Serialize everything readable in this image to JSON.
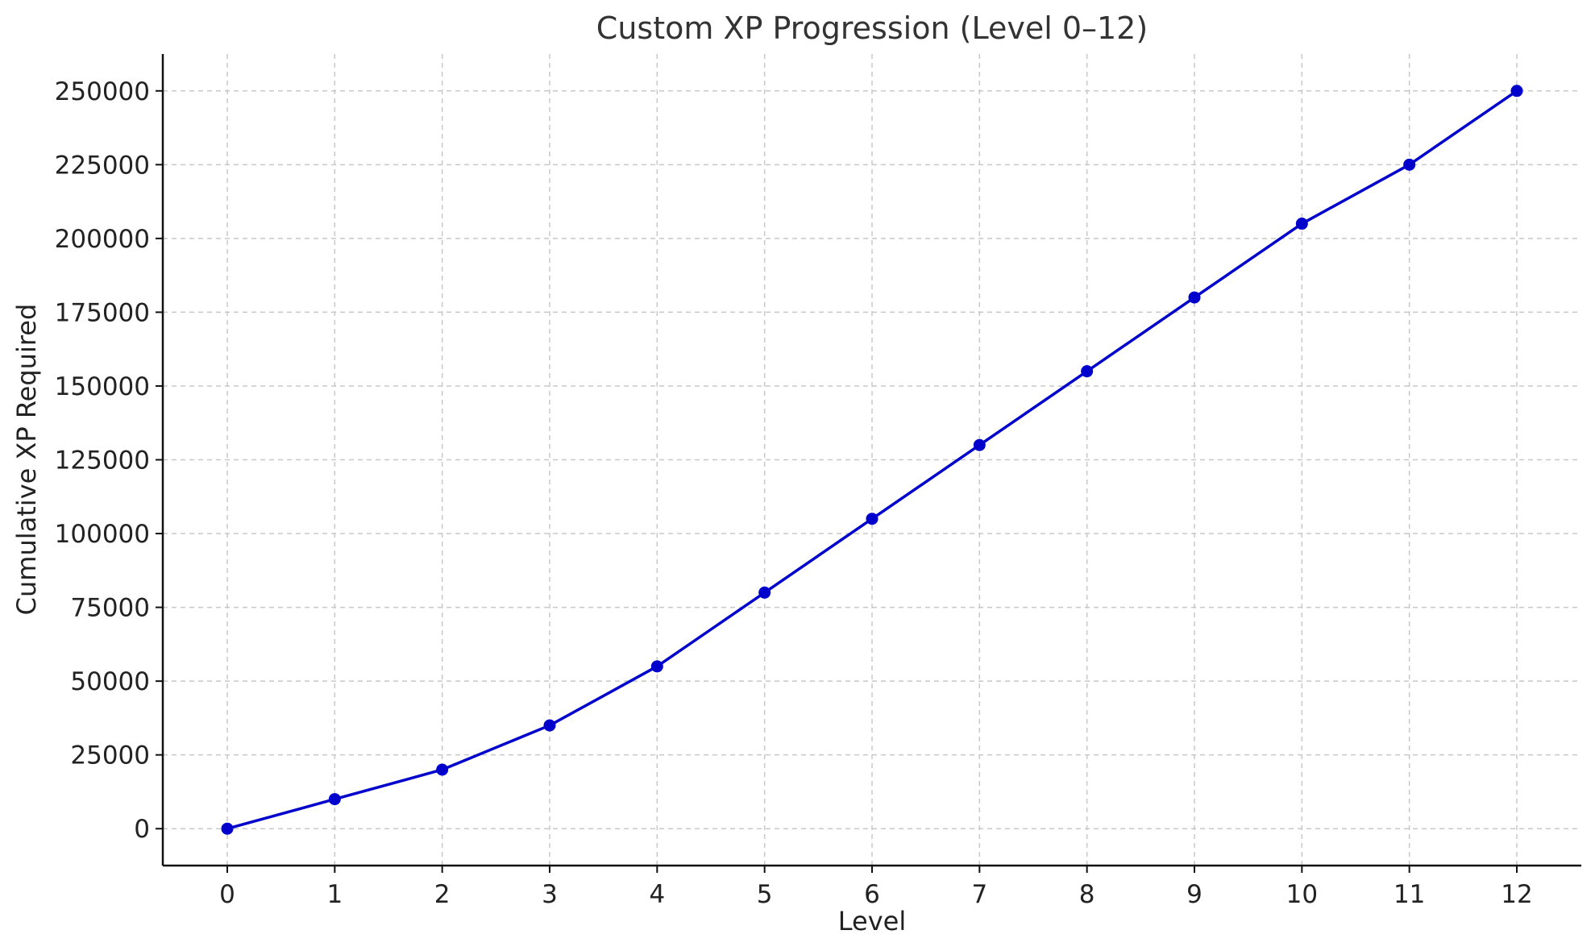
{
  "chart_data": {
    "type": "line",
    "title": "Custom XP Progression (Level 0–12)",
    "xlabel": "Level",
    "ylabel": "Cumulative XP Required",
    "x": [
      0,
      1,
      2,
      3,
      4,
      5,
      6,
      7,
      8,
      9,
      10,
      11,
      12
    ],
    "series": [
      {
        "values": [
          0,
          10000,
          20000,
          35000,
          55000,
          80000,
          105000,
          130000,
          155000,
          180000,
          205000,
          225000,
          250000
        ]
      }
    ],
    "xlim": [
      -0.6,
      12.6
    ],
    "ylim": [
      -12500,
      262500
    ],
    "xticks": [
      "0",
      "1",
      "2",
      "3",
      "4",
      "5",
      "6",
      "7",
      "8",
      "9",
      "10",
      "11",
      "12"
    ],
    "yticks": [
      "0",
      "25000",
      "50000",
      "75000",
      "100000",
      "125000",
      "150000",
      "175000",
      "200000",
      "225000",
      "250000"
    ],
    "grid": true,
    "colors": {
      "line": "#0000cc",
      "marker": "#0000cc"
    }
  }
}
